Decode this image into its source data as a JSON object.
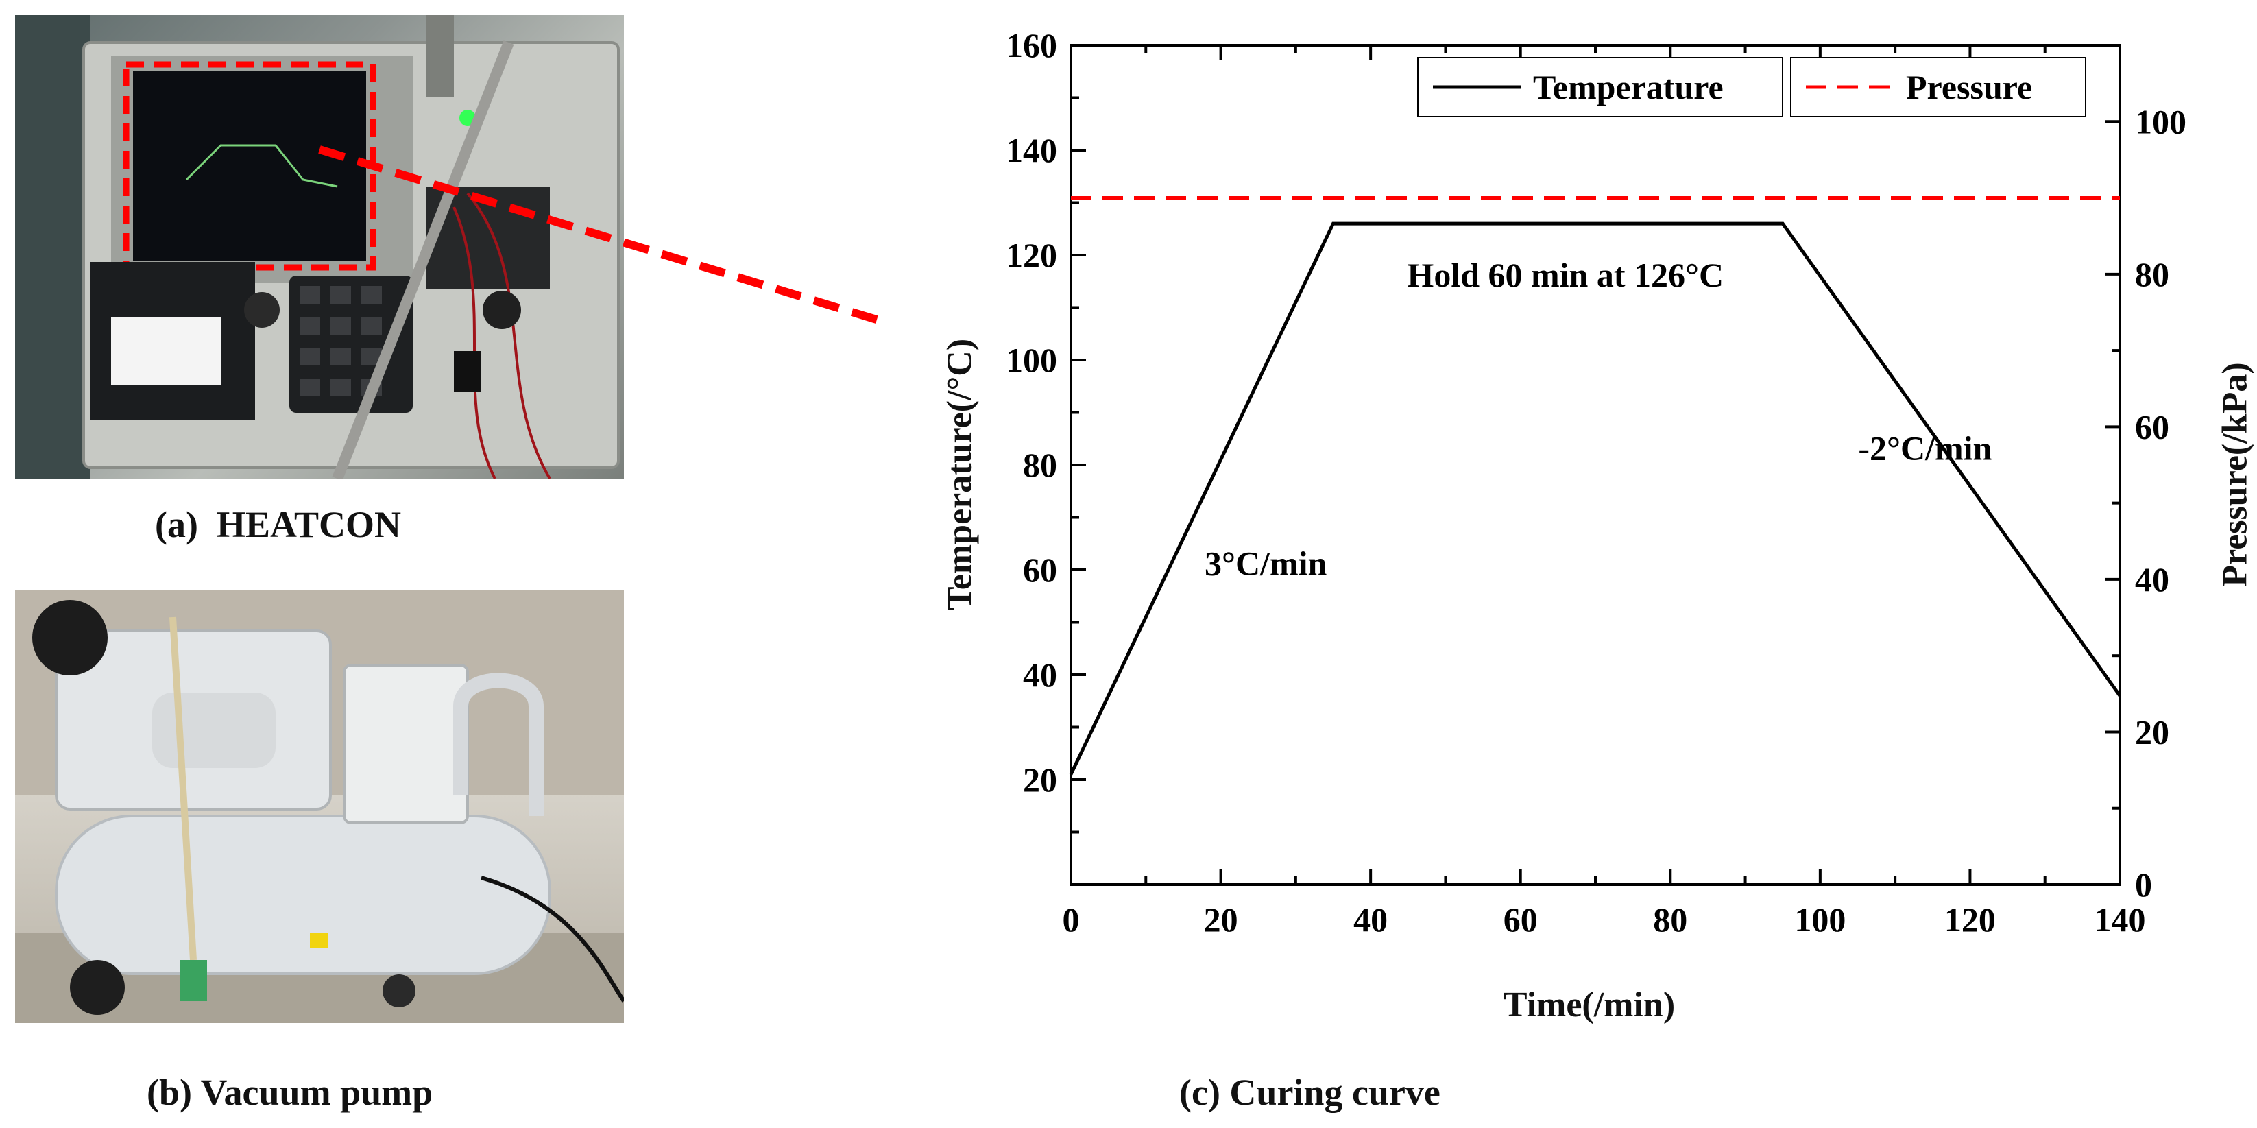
{
  "panels": {
    "a": {
      "caption": "(a)  HEATCON"
    },
    "b": {
      "caption": "(b) Vacuum pump"
    },
    "c": {
      "caption": "(c) Curing curve"
    }
  },
  "colors": {
    "temperature": "#000000",
    "pressure": "#ff0000",
    "callout": "#ff0000"
  },
  "chart_data": {
    "type": "line",
    "title": "",
    "xlabel": "Time(/min)",
    "ylabel": "Temperature(/°C)",
    "y2label": "Pressure(/kPa)",
    "xlim": [
      0,
      140
    ],
    "ylim": [
      0,
      160
    ],
    "y2lim": [
      0,
      110
    ],
    "x_ticks": [
      0,
      20,
      40,
      60,
      80,
      100,
      120,
      140
    ],
    "y_ticks": [
      20,
      40,
      60,
      80,
      100,
      120,
      140,
      160
    ],
    "y2_ticks": [
      0,
      20,
      40,
      60,
      80,
      100
    ],
    "grid": false,
    "legend_position": "top-right",
    "series": [
      {
        "name": "Temperature",
        "axis": "left",
        "style": "solid",
        "color": "#000000",
        "x": [
          0,
          35,
          95,
          140
        ],
        "y": [
          21,
          126,
          126,
          36
        ]
      },
      {
        "name": "Pressure",
        "axis": "right",
        "style": "dashed",
        "color": "#ff0000",
        "x": [
          0,
          140
        ],
        "y": [
          90,
          90
        ]
      }
    ],
    "annotations": [
      {
        "text": "Hold 60 min at 126°C",
        "x": 66,
        "y": 114
      },
      {
        "text": "3°C/min",
        "x": 26,
        "y": 59
      },
      {
        "text": "-2°C/min",
        "x": 114,
        "y": 81
      }
    ]
  }
}
